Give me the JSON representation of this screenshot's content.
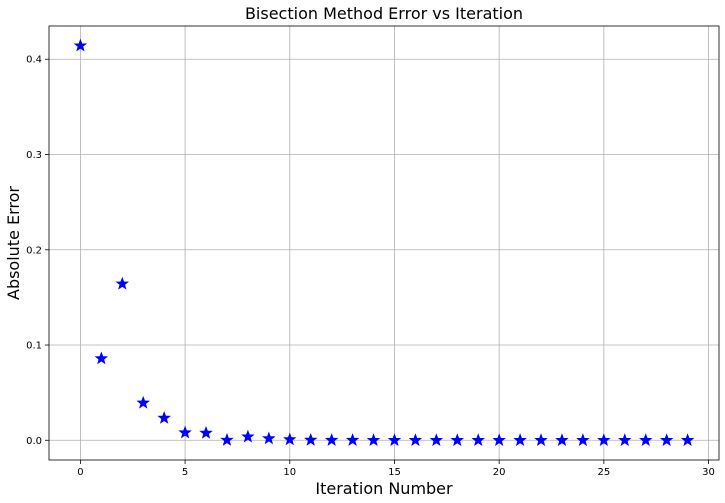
{
  "chart_data": {
    "type": "scatter",
    "title": "Bisection Method Error vs Iteration",
    "xlabel": "Iteration Number",
    "ylabel": "Absolute Error",
    "xlim": [
      -1.5,
      30.5
    ],
    "ylim": [
      -0.0207,
      0.4349
    ],
    "xticks": [
      0,
      5,
      10,
      15,
      20,
      25,
      30
    ],
    "yticks": [
      0.0,
      0.1,
      0.2,
      0.3,
      0.4
    ],
    "xtick_labels": [
      "0",
      "5",
      "10",
      "15",
      "20",
      "25",
      "30"
    ],
    "ytick_labels": [
      "0.0",
      "0.1",
      "0.2",
      "0.3",
      "0.4"
    ],
    "grid": true,
    "marker": "star",
    "color": "#0000ff",
    "series": [
      {
        "x": [
          0,
          1,
          2,
          3,
          4,
          5,
          6,
          7,
          8,
          9,
          10,
          11,
          12,
          13,
          14,
          15,
          16,
          17,
          18,
          19,
          20,
          21,
          22,
          23,
          24,
          25,
          26,
          27,
          28,
          29
        ],
        "y": [
          0.4142,
          0.0858,
          0.1642,
          0.0392,
          0.0233,
          0.008,
          0.0076,
          0.0002,
          0.0037,
          0.0018,
          0.0008,
          0.0003,
          0.0001,
          0.0001,
          0.0,
          0.0,
          0.0,
          0.0,
          0.0,
          0.0,
          0.0,
          0.0,
          0.0,
          0.0,
          0.0,
          0.0,
          0.0,
          0.0,
          0.0,
          0.0
        ]
      }
    ]
  }
}
